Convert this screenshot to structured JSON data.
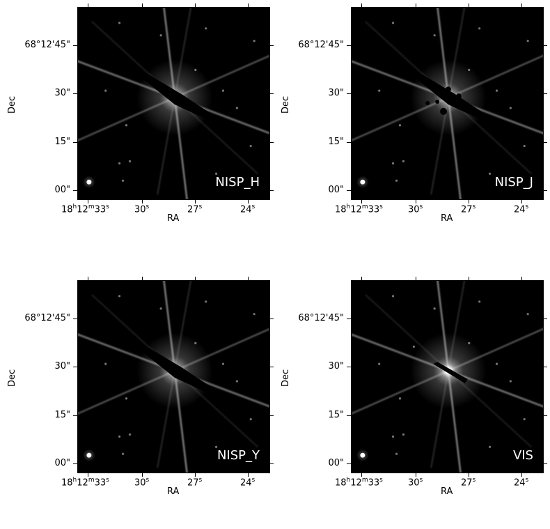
{
  "panels": [
    {
      "band": "NISP_H",
      "mask": "streak"
    },
    {
      "band": "NISP_J",
      "mask": "streak-holes"
    },
    {
      "band": "NISP_Y",
      "mask": "streak"
    },
    {
      "band": "VIS",
      "mask": "short"
    }
  ],
  "axes": {
    "xlabel": "RA",
    "ylabel": "Dec",
    "yticks": [
      "68°12'45\"",
      "30\"",
      "15\"",
      "00\""
    ],
    "xticks": [
      {
        "base": "18",
        "h": "h",
        "m": "12",
        "mm": "m",
        "s": "33",
        "ss": "s"
      },
      {
        "s": "30",
        "ss": "s"
      },
      {
        "s": "27",
        "ss": "s"
      },
      {
        "s": "24",
        "ss": "s"
      }
    ]
  }
}
